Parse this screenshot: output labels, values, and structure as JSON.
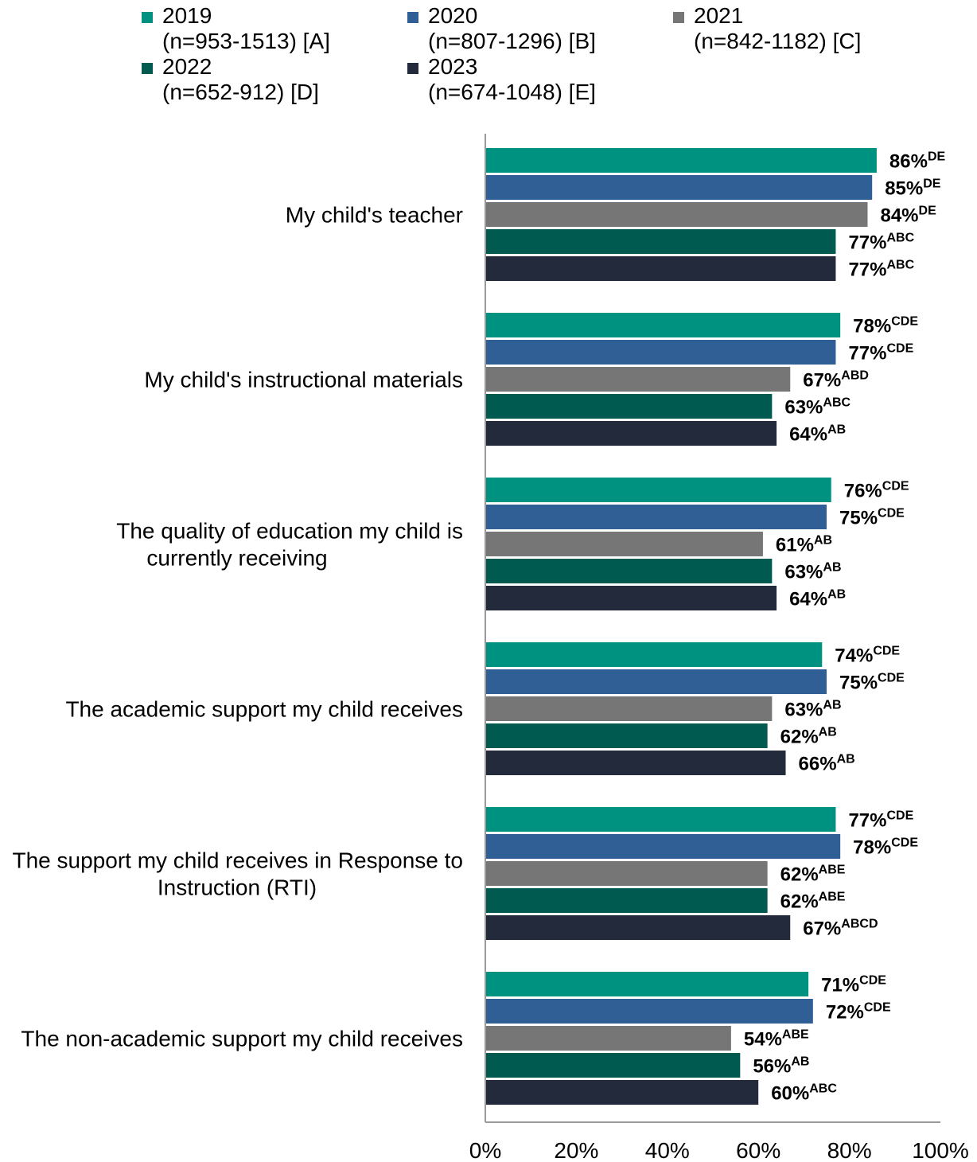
{
  "colors": {
    "2019": "#009280",
    "2020": "#2f5f94",
    "2021": "#767676",
    "2022": "#005a4f",
    "2023": "#222a3c"
  },
  "chart_data": {
    "type": "bar",
    "orientation": "horizontal",
    "title": "",
    "xlabel": "",
    "ylabel": "",
    "xlim": [
      0,
      100
    ],
    "x_ticks": [
      "0%",
      "20%",
      "40%",
      "60%",
      "80%",
      "100%"
    ],
    "grid": false,
    "legend_position": "top",
    "categories": [
      "My child's teacher",
      "My child's instructional materials",
      "The quality of education my child is currently receiving",
      "The academic support my child receives",
      "The support my child receives in Response to Instruction (RTI)",
      "The non-academic support my child receives"
    ],
    "series": [
      {
        "name": "2019",
        "n": "(n=953-1513) [A]",
        "color_key": "2019",
        "values": [
          86,
          78,
          76,
          74,
          77,
          71
        ],
        "sig": [
          "DE",
          "CDE",
          "CDE",
          "CDE",
          "CDE",
          "CDE"
        ]
      },
      {
        "name": "2020",
        "n": "(n=807-1296) [B]",
        "color_key": "2020",
        "values": [
          85,
          77,
          75,
          75,
          78,
          72
        ],
        "sig": [
          "DE",
          "CDE",
          "CDE",
          "CDE",
          "CDE",
          "CDE"
        ]
      },
      {
        "name": "2021",
        "n": "(n=842-1182) [C]",
        "color_key": "2021",
        "values": [
          84,
          67,
          61,
          63,
          62,
          54
        ],
        "sig": [
          "DE",
          "ABD",
          "AB",
          "AB",
          "ABE",
          "ABE"
        ]
      },
      {
        "name": "2022",
        "n": "(n=652-912) [D]",
        "color_key": "2022",
        "values": [
          77,
          63,
          63,
          62,
          62,
          56
        ],
        "sig": [
          "ABC",
          "ABC",
          "AB",
          "AB",
          "ABE",
          "AB"
        ]
      },
      {
        "name": "2023",
        "n": "(n=674-1048) [E]",
        "color_key": "2023",
        "values": [
          77,
          64,
          64,
          66,
          67,
          60
        ],
        "sig": [
          "ABC",
          "AB",
          "AB",
          "AB",
          "ABCD",
          "ABC"
        ]
      }
    ]
  }
}
